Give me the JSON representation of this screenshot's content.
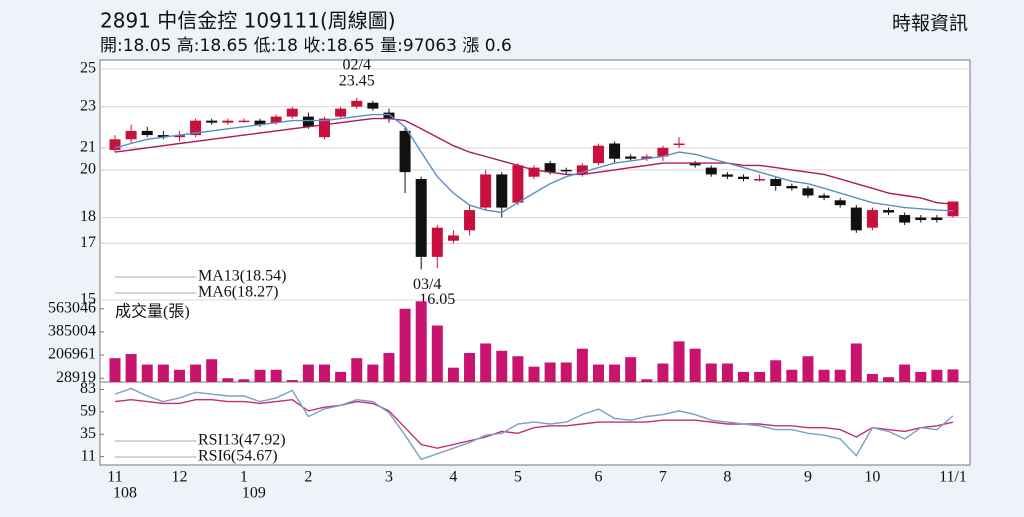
{
  "header": {
    "title": "2891  中信金控 109111(周線圖)",
    "source": "時報資訊",
    "quote": "開:18.05 高:18.65 低:18 收:18.65 量:97063 漲 0.6"
  },
  "chart_data": [
    {
      "type": "candlestick",
      "log_scale": true,
      "ylim": [
        15,
        25.5
      ],
      "yticks": [
        25,
        23,
        21,
        20,
        18,
        17,
        15
      ],
      "grid": true,
      "up_color": "#c8103c",
      "down_color": "#111111",
      "open": [
        20.9,
        21.4,
        21.8,
        21.6,
        21.5,
        21.6,
        22.3,
        22.2,
        22.3,
        22.3,
        22.2,
        22.5,
        22.5,
        21.5,
        22.5,
        23.0,
        23.2,
        22.7,
        21.8,
        19.6,
        16.5,
        17.1,
        17.5,
        18.4,
        19.8,
        18.6,
        19.7,
        20.3,
        20.0,
        19.8,
        20.3,
        21.2,
        20.6,
        20.5,
        20.6,
        21.2,
        20.3,
        20.1,
        19.8,
        19.7,
        19.6,
        19.6,
        19.3,
        19.2,
        18.9,
        18.7,
        18.4,
        17.6,
        18.3,
        18.1,
        18.0,
        18.0,
        18.05
      ],
      "high": [
        21.6,
        22.1,
        22.0,
        21.8,
        21.8,
        22.4,
        22.4,
        22.4,
        22.4,
        22.4,
        22.6,
        23.0,
        22.7,
        22.5,
        23.0,
        23.45,
        23.3,
        22.9,
        22.0,
        19.7,
        17.7,
        17.5,
        18.5,
        20.0,
        19.9,
        20.3,
        20.2,
        20.4,
        20.1,
        20.3,
        21.2,
        21.3,
        20.7,
        20.7,
        21.1,
        21.5,
        20.4,
        20.2,
        19.9,
        19.8,
        19.8,
        19.7,
        19.4,
        19.3,
        19.0,
        18.8,
        18.5,
        18.4,
        18.4,
        18.2,
        18.1,
        18.1,
        18.65
      ],
      "low": [
        20.8,
        21.2,
        21.5,
        21.4,
        21.3,
        21.5,
        22.1,
        22.1,
        22.2,
        22.0,
        22.1,
        22.4,
        21.9,
        21.4,
        22.4,
        22.9,
        22.8,
        22.2,
        19.0,
        16.05,
        16.1,
        17.0,
        17.3,
        18.3,
        18.0,
        18.5,
        19.6,
        19.8,
        19.8,
        19.7,
        20.2,
        20.3,
        20.4,
        20.4,
        20.4,
        21.0,
        20.1,
        19.7,
        19.6,
        19.5,
        19.5,
        19.1,
        19.1,
        18.8,
        18.7,
        18.4,
        17.4,
        17.5,
        18.1,
        17.7,
        17.8,
        17.8,
        18.0
      ],
      "close": [
        21.4,
        21.8,
        21.6,
        21.5,
        21.6,
        22.3,
        22.2,
        22.3,
        22.3,
        22.1,
        22.5,
        22.9,
        22.0,
        22.4,
        22.9,
        23.3,
        22.9,
        22.4,
        19.9,
        16.5,
        17.6,
        17.3,
        18.3,
        19.8,
        18.4,
        20.2,
        20.1,
        19.9,
        19.95,
        20.2,
        21.1,
        20.5,
        20.5,
        20.6,
        21.0,
        21.2,
        20.2,
        19.8,
        19.7,
        19.6,
        19.6,
        19.3,
        19.2,
        18.9,
        18.8,
        18.5,
        17.5,
        18.3,
        18.2,
        17.8,
        17.9,
        17.9,
        18.65
      ],
      "series": [
        {
          "name": "MA13(18.54)",
          "color": "#b0185a",
          "values": [
            20.8,
            20.9,
            21.0,
            21.1,
            21.2,
            21.3,
            21.4,
            21.5,
            21.6,
            21.7,
            21.8,
            21.9,
            22.0,
            22.1,
            22.2,
            22.3,
            22.4,
            22.4,
            22.3,
            21.9,
            21.5,
            21.1,
            20.8,
            20.6,
            20.4,
            20.2,
            20.0,
            19.9,
            19.8,
            19.8,
            19.9,
            20.0,
            20.1,
            20.2,
            20.3,
            20.3,
            20.3,
            20.3,
            20.3,
            20.2,
            20.2,
            20.1,
            20.0,
            19.9,
            19.8,
            19.6,
            19.4,
            19.2,
            19.0,
            18.9,
            18.8,
            18.6,
            18.54
          ]
        },
        {
          "name": "MA6(18.27)",
          "color": "#5b8fc2",
          "values": [
            21.0,
            21.2,
            21.4,
            21.5,
            21.6,
            21.7,
            21.8,
            21.9,
            22.0,
            22.1,
            22.2,
            22.3,
            22.3,
            22.3,
            22.4,
            22.5,
            22.6,
            22.6,
            22.0,
            20.8,
            19.7,
            19.0,
            18.5,
            18.3,
            18.2,
            18.6,
            19.0,
            19.4,
            19.7,
            19.9,
            20.1,
            20.3,
            20.4,
            20.5,
            20.6,
            20.8,
            20.7,
            20.5,
            20.3,
            20.1,
            19.9,
            19.7,
            19.5,
            19.4,
            19.2,
            19.0,
            18.8,
            18.6,
            18.5,
            18.4,
            18.35,
            18.3,
            18.27
          ]
        }
      ],
      "annotations": [
        {
          "label": "02/4",
          "value": 23.45
        },
        {
          "label": "03/4",
          "value": 16.05
        }
      ]
    },
    {
      "type": "bar",
      "name": "成交量(張)",
      "color": "#c8146e",
      "ylim": [
        0,
        630000
      ],
      "yticks": [
        28919,
        206961,
        385004,
        563046
      ],
      "values": [
        183000,
        215000,
        134000,
        134000,
        94000,
        134000,
        175000,
        29000,
        21000,
        94000,
        94000,
        15000,
        134000,
        134000,
        78000,
        183000,
        134000,
        223000,
        563046,
        620000,
        434000,
        110000,
        223000,
        296000,
        240000,
        198000,
        118000,
        150000,
        150000,
        256000,
        134000,
        134000,
        191000,
        21000,
        142000,
        312000,
        256000,
        142000,
        142000,
        78000,
        78000,
        167000,
        94000,
        198000,
        94000,
        94000,
        296000,
        62000,
        37000,
        134000,
        78000,
        94000,
        97063
      ]
    },
    {
      "type": "line",
      "ylim": [
        2,
        91
      ],
      "yticks": [
        83,
        59,
        35,
        11
      ],
      "categories": [
        "11",
        null,
        null,
        null,
        "12",
        null,
        null,
        null,
        "1",
        null,
        null,
        null,
        "2",
        null,
        null,
        null,
        null,
        "3",
        null,
        null,
        null,
        "4",
        null,
        null,
        null,
        "5",
        null,
        null,
        null,
        null,
        "6",
        null,
        null,
        null,
        "7",
        null,
        null,
        null,
        "8",
        null,
        null,
        null,
        null,
        "9",
        null,
        null,
        null,
        "10",
        null,
        null,
        null,
        null,
        "11/1"
      ],
      "category_years": [
        "108",
        null,
        null,
        null,
        null,
        null,
        null,
        null,
        "109",
        null,
        null,
        null,
        null,
        null,
        null,
        null,
        null,
        null,
        null,
        null,
        null,
        null,
        null,
        null,
        null,
        null,
        null,
        null,
        null,
        null,
        null,
        null,
        null,
        null,
        null,
        null,
        null,
        null,
        null,
        null,
        null,
        null,
        null,
        null,
        null,
        null,
        null,
        null,
        null,
        null,
        null,
        null,
        null
      ],
      "series": [
        {
          "name": "RSI13(47.92)",
          "color": "#c0306a",
          "values": [
            70,
            72,
            70,
            68,
            68,
            72,
            72,
            70,
            70,
            68,
            70,
            72,
            60,
            64,
            66,
            70,
            68,
            60,
            42,
            24,
            20,
            24,
            28,
            32,
            38,
            36,
            42,
            44,
            44,
            46,
            48,
            48,
            48,
            48,
            50,
            50,
            50,
            48,
            46,
            46,
            46,
            44,
            44,
            42,
            42,
            40,
            32,
            42,
            40,
            38,
            42,
            44,
            47.92
          ]
        },
        {
          "name": "RSI6(54.67)",
          "color": "#7aa0c8",
          "values": [
            78,
            84,
            76,
            70,
            74,
            80,
            78,
            76,
            76,
            70,
            74,
            82,
            54,
            62,
            66,
            72,
            70,
            58,
            34,
            8,
            14,
            20,
            26,
            34,
            36,
            46,
            48,
            46,
            48,
            56,
            62,
            52,
            50,
            54,
            56,
            60,
            56,
            50,
            48,
            46,
            44,
            40,
            40,
            36,
            34,
            30,
            12,
            42,
            38,
            30,
            42,
            40,
            54.67
          ]
        }
      ]
    }
  ]
}
